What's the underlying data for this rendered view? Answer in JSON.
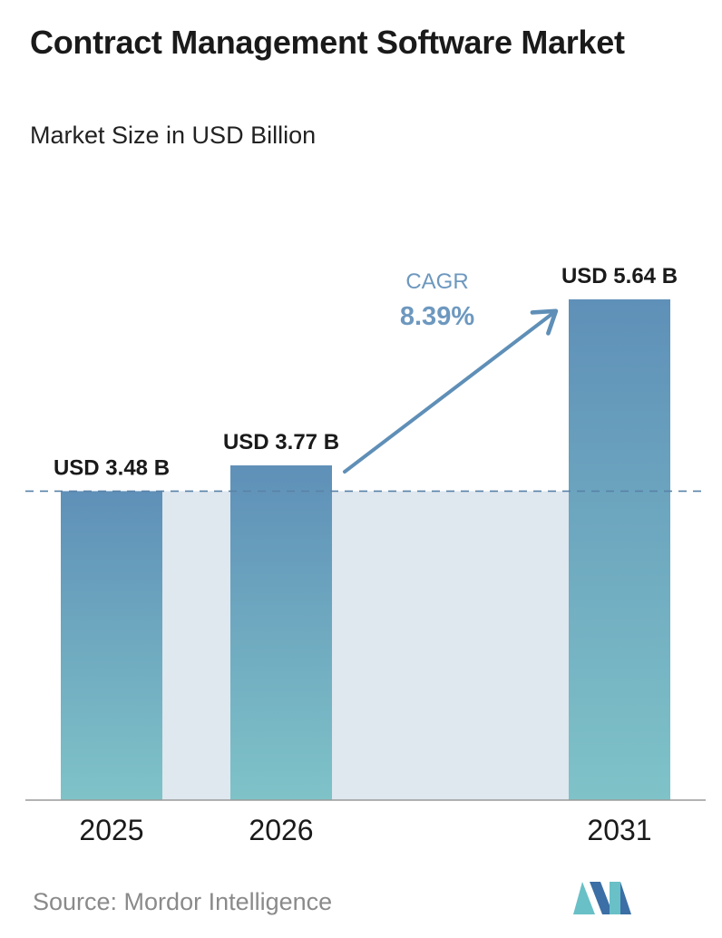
{
  "title": "Contract Management Software Market",
  "subtitle": "Market Size in USD Billion",
  "source": "Source:  Mordor Intelligence",
  "cagr": {
    "label": "CAGR",
    "value": "8.39%"
  },
  "colors": {
    "bar_top": "#5f90b8",
    "bar_bottom": "#7fc3c8",
    "band": "#dfe7ef",
    "arrow": "#5f8fb7",
    "cagr_text": "#6d98bf",
    "logo_dark": "#3b6fa5",
    "logo_light": "#69c0c6"
  },
  "chart_data": {
    "type": "bar",
    "categories": [
      "2025",
      "2026",
      "2031"
    ],
    "values": [
      3.48,
      3.77,
      5.64
    ],
    "data_labels": [
      "USD 3.48 B",
      "USD 3.77 B",
      "USD 5.64 B"
    ],
    "title": "Contract Management Software Market",
    "subtitle": "Market Size in USD Billion",
    "ylim": [
      0,
      5.64
    ],
    "grid": false,
    "reference_line": {
      "value": 3.48,
      "style": "dashed"
    }
  }
}
